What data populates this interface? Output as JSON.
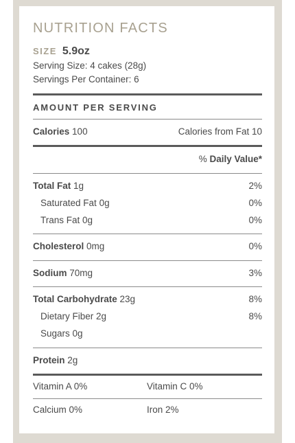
{
  "label": {
    "title": "NUTRITION FACTS",
    "size_label": "SIZE",
    "size_value": "5.9oz",
    "serving_size": "Serving Size: 4 cakes (28g)",
    "servings_per_container": "Servings Per Container: 6",
    "amount_header": "AMOUNT PER SERVING",
    "calories": {
      "label": "Calories",
      "value": "100",
      "from_fat": "Calories from Fat 10"
    },
    "daily_value_header": {
      "prefix": "% ",
      "label": "Daily Value*"
    },
    "nutrients": {
      "total_fat": {
        "label": "Total Fat",
        "amount": "1g",
        "dv": "2%"
      },
      "saturated_fat": {
        "label": "Saturated Fat",
        "amount": "0g",
        "dv": "0%"
      },
      "trans_fat": {
        "label": "Trans Fat",
        "amount": "0g",
        "dv": "0%"
      },
      "cholesterol": {
        "label": "Cholesterol",
        "amount": "0mg",
        "dv": "0%"
      },
      "sodium": {
        "label": "Sodium",
        "amount": "70mg",
        "dv": "3%"
      },
      "total_carbohydrate": {
        "label": "Total Carbohydrate",
        "amount": "23g",
        "dv": "8%"
      },
      "dietary_fiber": {
        "label": "Dietary Fiber",
        "amount": "2g",
        "dv": "8%"
      },
      "sugars": {
        "label": "Sugars",
        "amount": "0g"
      },
      "protein": {
        "label": "Protein",
        "amount": "2g"
      }
    },
    "vitamins": {
      "vitamin_a": "Vitamin A  0%",
      "vitamin_c": "Vitamin C  0%",
      "calcium": "Calcium  0%",
      "iron": "Iron  2%"
    }
  },
  "colors": {
    "accent": "#a8a190",
    "text": "#4a4a4a",
    "frame": "#dedad2"
  }
}
